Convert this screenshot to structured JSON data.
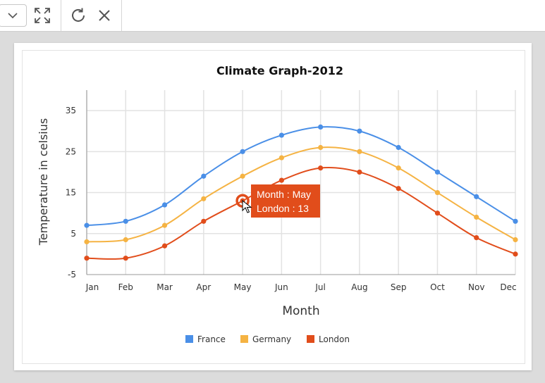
{
  "chart_data": {
    "type": "line",
    "title": "Climate Graph-2012",
    "xlabel": "Month",
    "ylabel": "Temperature in celsius",
    "categories": [
      "Jan",
      "Feb",
      "Mar",
      "Apr",
      "May",
      "Jun",
      "Jul",
      "Aug",
      "Sep",
      "Oct",
      "Nov",
      "Dec"
    ],
    "ylim": [
      -5,
      40
    ],
    "yticks": [
      -5,
      5,
      15,
      25,
      35
    ],
    "grid": true,
    "legend_position": "bottom",
    "series": [
      {
        "name": "France",
        "color": "#4a8fe7",
        "values": [
          7,
          8,
          12,
          19,
          25,
          29,
          31,
          30,
          26,
          20,
          14,
          8
        ]
      },
      {
        "name": "Germany",
        "color": "#f5b343",
        "values": [
          3,
          3.5,
          7,
          13.5,
          19,
          23.5,
          26,
          25,
          21,
          15,
          9,
          3.5
        ]
      },
      {
        "name": "London",
        "color": "#e14d1b",
        "values": [
          -1,
          -1,
          2,
          8,
          13,
          18,
          21,
          20,
          16,
          10,
          4,
          0
        ]
      }
    ],
    "tooltip": {
      "line1": "Month : May",
      "line2": "London : 13",
      "series": "London",
      "category": "May"
    }
  },
  "icons": {
    "dropdown": "chevron-down-icon",
    "expand": "expand-icon",
    "refresh": "refresh-icon",
    "close": "close-icon"
  }
}
